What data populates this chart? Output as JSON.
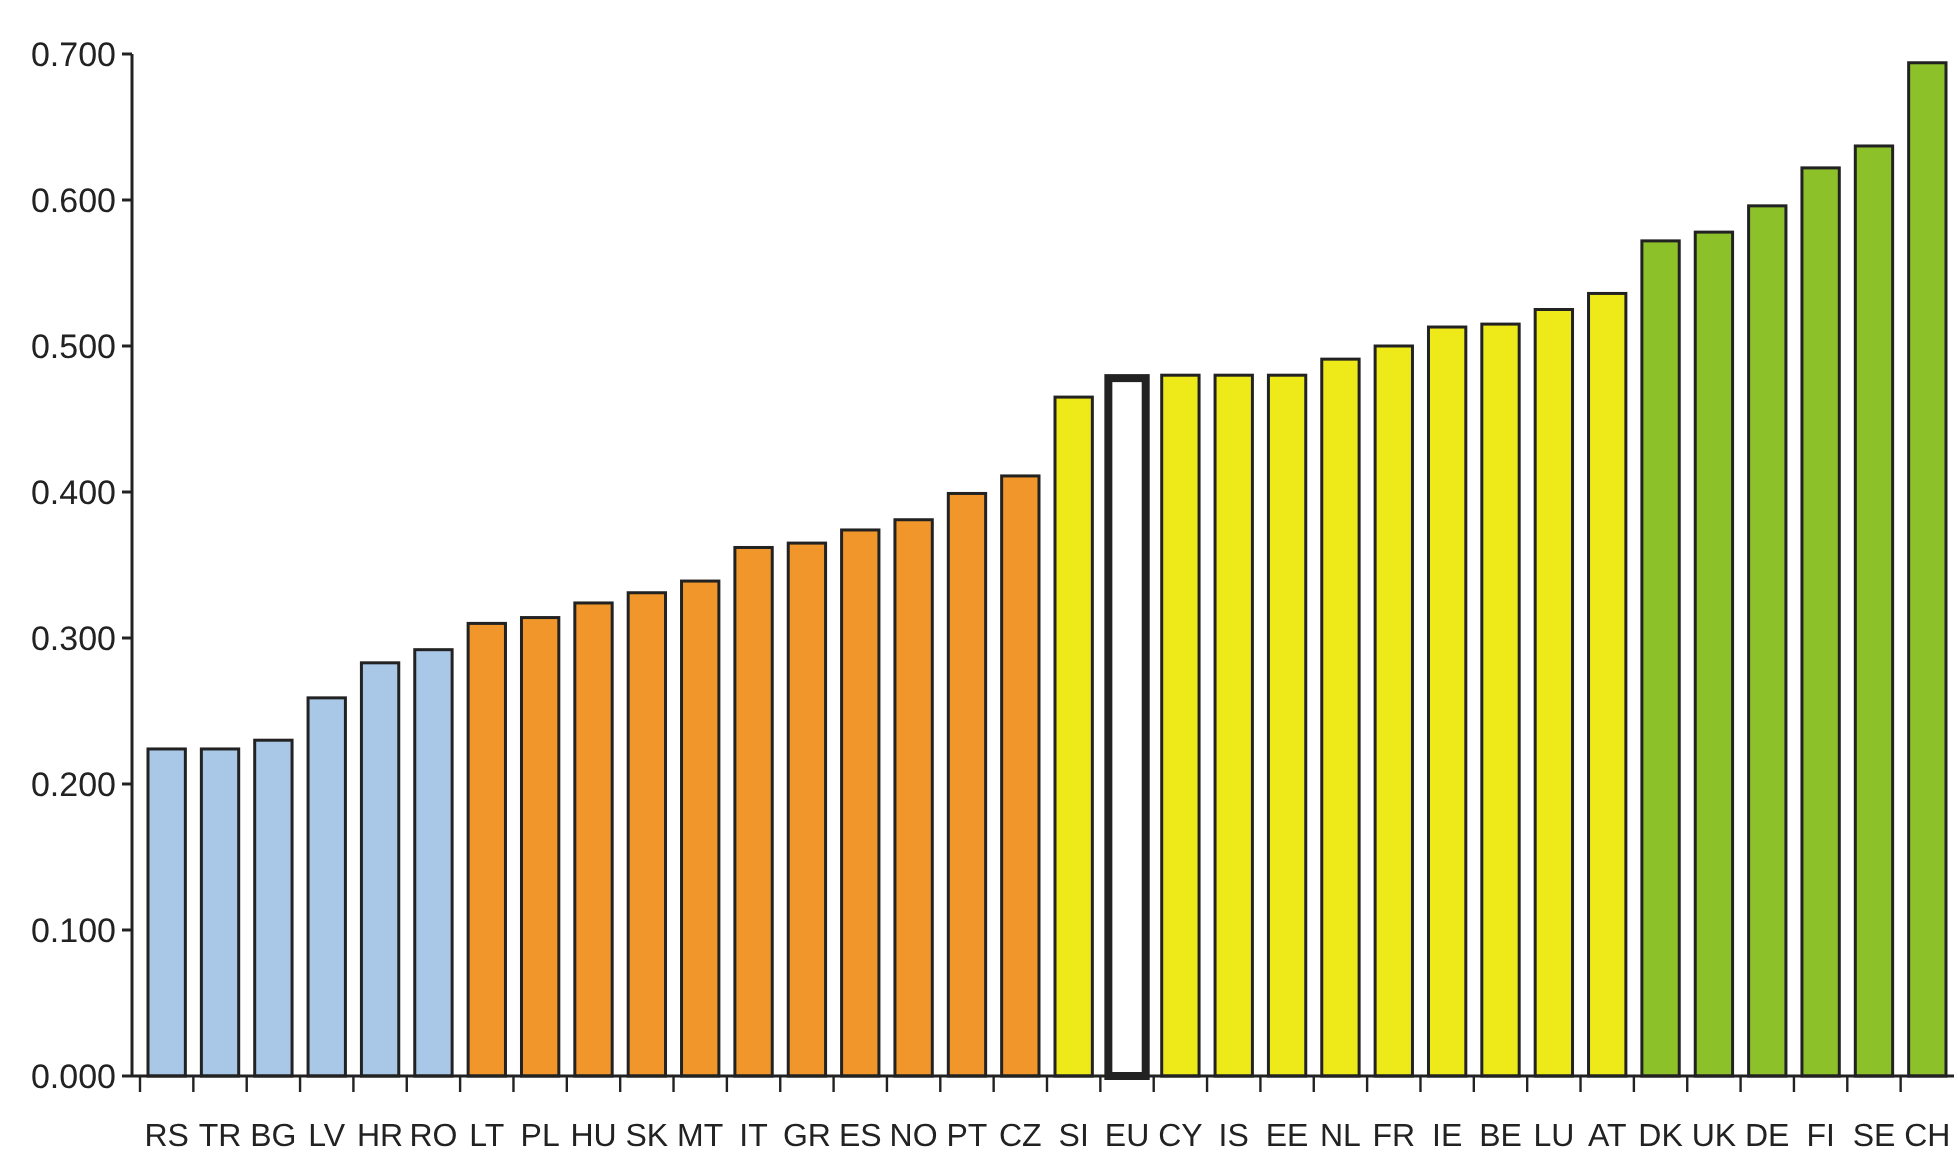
{
  "chart_data": {
    "type": "bar",
    "categories": [
      "RS",
      "TR",
      "BG",
      "LV",
      "HR",
      "RO",
      "LT",
      "PL",
      "HU",
      "SK",
      "MT",
      "IT",
      "GR",
      "ES",
      "NO",
      "PT",
      "CZ",
      "SI",
      "EU",
      "CY",
      "IS",
      "EE",
      "NL",
      "FR",
      "IE",
      "BE",
      "LU",
      "AT",
      "DK",
      "UK",
      "DE",
      "FI",
      "SE",
      "CH"
    ],
    "values": [
      0.224,
      0.224,
      0.23,
      0.259,
      0.283,
      0.292,
      0.31,
      0.314,
      0.324,
      0.331,
      0.339,
      0.362,
      0.365,
      0.374,
      0.381,
      0.399,
      0.411,
      0.465,
      0.478,
      0.48,
      0.48,
      0.48,
      0.491,
      0.5,
      0.513,
      0.515,
      0.525,
      0.536,
      0.572,
      0.578,
      0.596,
      0.622,
      0.637,
      0.694
    ],
    "colors": [
      "#a9c8e8",
      "#a9c8e8",
      "#a9c8e8",
      "#a9c8e8",
      "#a9c8e8",
      "#a9c8e8",
      "#f0962a",
      "#f0962a",
      "#f0962a",
      "#f0962a",
      "#f0962a",
      "#f0962a",
      "#f0962a",
      "#f0962a",
      "#f0962a",
      "#f0962a",
      "#f0962a",
      "#eeea1a",
      "#ffffff",
      "#eeea1a",
      "#eeea1a",
      "#eeea1a",
      "#eeea1a",
      "#eeea1a",
      "#eeea1a",
      "#eeea1a",
      "#eeea1a",
      "#eeea1a",
      "#8dc12a",
      "#8dc12a",
      "#8dc12a",
      "#8dc12a",
      "#8dc12a",
      "#8dc12a"
    ],
    "ylim": [
      0,
      0.7
    ],
    "yticks": [
      {
        "value": 0,
        "label": "0.000"
      },
      {
        "value": 0.1,
        "label": "0.100"
      },
      {
        "value": 0.2,
        "label": "0.200"
      },
      {
        "value": 0.3,
        "label": "0.300"
      },
      {
        "value": 0.4,
        "label": "0.400"
      },
      {
        "value": 0.5,
        "label": "0.500"
      },
      {
        "value": 0.6,
        "label": "0.600"
      },
      {
        "value": 0.7,
        "label": "0.700"
      }
    ]
  }
}
